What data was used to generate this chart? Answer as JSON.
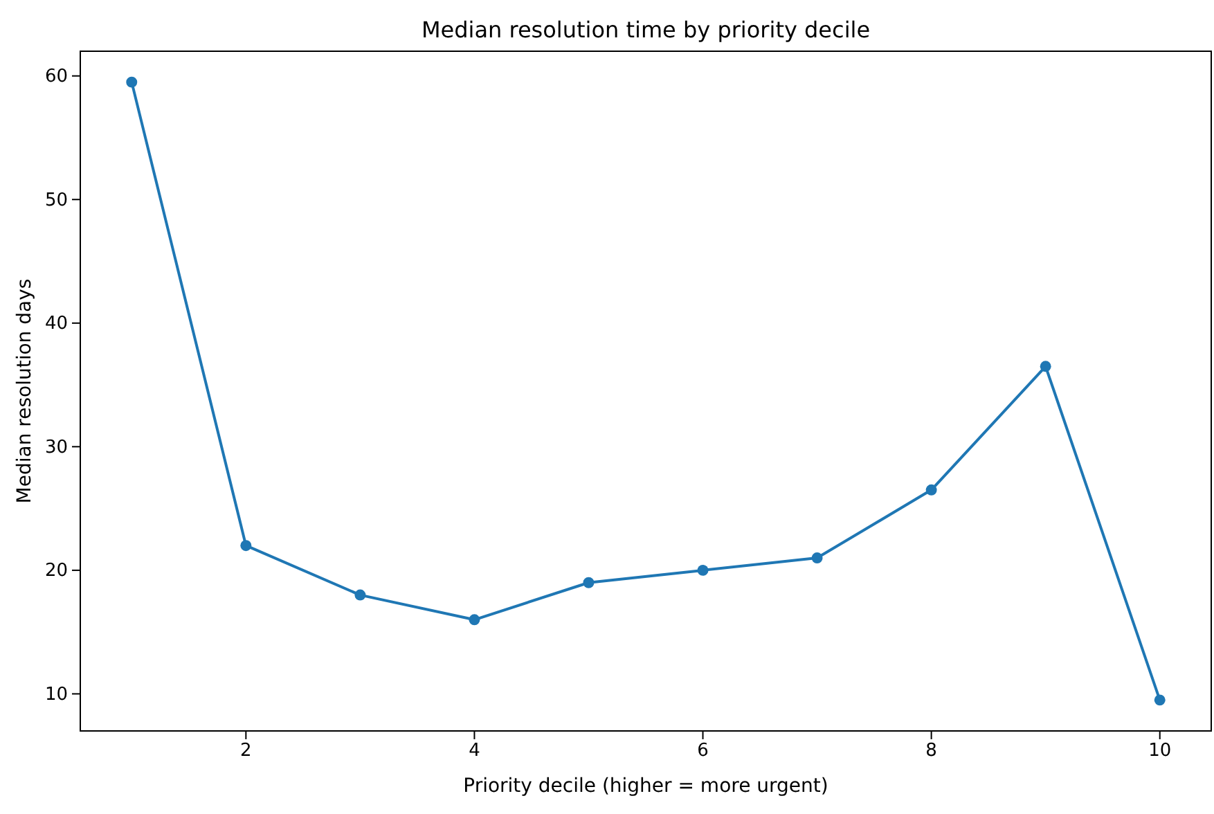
{
  "chart_data": {
    "type": "line",
    "title": "Median resolution time by priority decile",
    "xlabel": "Priority decile (higher = more urgent)",
    "ylabel": "Median resolution days",
    "x": [
      1,
      2,
      3,
      4,
      5,
      6,
      7,
      8,
      9,
      10
    ],
    "series": [
      {
        "color": "#1f77b4",
        "values": [
          59.5,
          22,
          18,
          16,
          19,
          20,
          21,
          26.5,
          36.5,
          9.5
        ]
      }
    ],
    "xlim": [
      0.55,
      10.45
    ],
    "ylim": [
      7,
      62
    ],
    "xticks": [
      2,
      4,
      6,
      8,
      10
    ],
    "yticks": [
      10,
      20,
      30,
      40,
      50,
      60
    ],
    "marker": "circle",
    "line_style": "solid",
    "grid": false
  }
}
